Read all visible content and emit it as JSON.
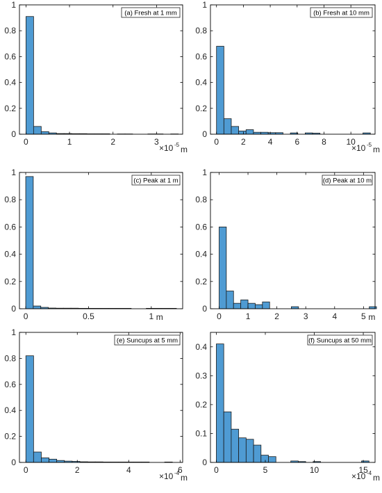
{
  "chart_data": [
    {
      "id": "a",
      "type": "bar",
      "legend": "(a) Fresh at 1 mm",
      "legend_position": "top-right",
      "xlim": [
        -0.15,
        3.6
      ],
      "ylim": [
        0,
        1
      ],
      "xticks": [
        0,
        1,
        2,
        3
      ],
      "xtick_labels": [
        "0",
        "1",
        "2",
        "3"
      ],
      "yticks": [
        0,
        0.2,
        0.4,
        0.6,
        0.8,
        1
      ],
      "ytick_labels": [
        "0",
        "0.2",
        "0.4",
        "0.6",
        "0.8",
        "1"
      ],
      "unit": {
        "prefix": "×10",
        "exponent": "-5",
        "suffix": "m"
      },
      "bin_width": 0.175,
      "bins_start": [
        0,
        0.175,
        0.35,
        0.525,
        0.7,
        0.875,
        1.05,
        1.225,
        1.4,
        1.575,
        1.75,
        2.1,
        2.275,
        2.8,
        2.975,
        3.325
      ],
      "values": [
        0.91,
        0.06,
        0.02,
        0.01,
        0.005,
        0.005,
        0.004,
        0.004,
        0.003,
        0.003,
        0.003,
        0.002,
        0.002,
        0.002,
        0.002,
        0.002
      ]
    },
    {
      "id": "b",
      "type": "bar",
      "legend": "(b) Fresh at 10 mm",
      "legend_position": "top-right",
      "xlim": [
        -0.45,
        11.8
      ],
      "ylim": [
        0,
        1
      ],
      "xticks": [
        0,
        2,
        4,
        6,
        8,
        10
      ],
      "xtick_labels": [
        "0",
        "2",
        "4",
        "6",
        "8",
        "10"
      ],
      "yticks": [
        0,
        0.2,
        0.4,
        0.6,
        0.8,
        1
      ],
      "ytick_labels": [
        "0",
        "0.2",
        "0.4",
        "0.6",
        "0.8",
        "1"
      ],
      "unit": {
        "prefix": "×10",
        "exponent": "-5",
        "suffix": "m"
      },
      "bin_width": 0.55,
      "bins_start": [
        0,
        0.55,
        1.1,
        1.65,
        2.2,
        2.75,
        3.3,
        3.85,
        4.4,
        5.5,
        6.6,
        7.15,
        10.9
      ],
      "values": [
        0.68,
        0.12,
        0.06,
        0.025,
        0.035,
        0.015,
        0.015,
        0.012,
        0.012,
        0.01,
        0.01,
        0.008,
        0.01
      ]
    },
    {
      "id": "c",
      "type": "bar",
      "legend": "(c) Peak at 1 m",
      "legend_position": "top-right",
      "xlim": [
        -0.05,
        1.25
      ],
      "ylim": [
        0,
        1
      ],
      "xticks": [
        0,
        0.5,
        1
      ],
      "xtick_labels": [
        "0",
        "0.5",
        "1"
      ],
      "yticks": [
        0,
        0.2,
        0.4,
        0.6,
        0.8,
        1
      ],
      "ytick_labels": [
        "0",
        "0.2",
        "0.4",
        "0.6",
        "0.8",
        "1"
      ],
      "unit": {
        "prefix": "",
        "exponent": "",
        "suffix": "m"
      },
      "bin_width": 0.06,
      "bins_start": [
        0,
        0.06,
        0.12,
        0.18,
        0.24,
        0.3,
        0.36,
        0.42,
        0.48,
        0.54,
        0.6,
        0.66,
        0.72,
        0.78,
        0.96,
        1.02,
        1.08,
        1.14
      ],
      "values": [
        0.97,
        0.02,
        0.01,
        0.005,
        0.004,
        0.004,
        0.004,
        0.003,
        0.003,
        0.003,
        0.003,
        0.003,
        0.003,
        0.003,
        0.003,
        0.003,
        0.003,
        0.003
      ]
    },
    {
      "id": "d",
      "type": "bar",
      "legend": "(d) Peak at 10 m",
      "legend_position": "top-right",
      "xlim": [
        -0.3,
        5.4
      ],
      "ylim": [
        0,
        1
      ],
      "xticks": [
        0,
        1,
        2,
        3,
        4,
        5
      ],
      "xtick_labels": [
        "0",
        "1",
        "2",
        "3",
        "4",
        "5"
      ],
      "yticks": [
        0,
        0.2,
        0.4,
        0.6,
        0.8,
        1
      ],
      "ytick_labels": [
        "0",
        "0.2",
        "0.4",
        "0.6",
        "0.8",
        "1"
      ],
      "unit": {
        "prefix": "",
        "exponent": "",
        "suffix": "m"
      },
      "bin_width": 0.25,
      "bins_start": [
        0,
        0.25,
        0.5,
        0.75,
        1.0,
        1.25,
        1.5,
        2.5,
        5.2
      ],
      "values": [
        0.6,
        0.13,
        0.04,
        0.065,
        0.04,
        0.03,
        0.05,
        0.015,
        0.015
      ]
    },
    {
      "id": "e",
      "type": "bar",
      "legend": "(e) Suncups at 5 mm",
      "legend_position": "top-right",
      "xlim": [
        -0.25,
        6.1
      ],
      "ylim": [
        0,
        1
      ],
      "xticks": [
        0,
        2,
        4,
        6
      ],
      "xtick_labels": [
        "0",
        "2",
        "4",
        "6"
      ],
      "yticks": [
        0,
        0.2,
        0.4,
        0.6,
        0.8,
        1
      ],
      "ytick_labels": [
        "0",
        "0.2",
        "0.4",
        "0.6",
        "0.8",
        "1"
      ],
      "unit": {
        "prefix": "×10",
        "exponent": "-4",
        "suffix": "m"
      },
      "bin_width": 0.3,
      "bins_start": [
        0,
        0.3,
        0.6,
        0.9,
        1.2,
        1.5,
        1.8,
        2.1,
        2.4,
        2.7,
        3.0,
        3.3,
        3.6,
        3.9,
        4.2,
        4.5,
        5.4
      ],
      "values": [
        0.82,
        0.08,
        0.035,
        0.025,
        0.015,
        0.01,
        0.008,
        0.005,
        0.004,
        0.004,
        0.003,
        0.003,
        0.003,
        0.003,
        0.003,
        0.003,
        0.003
      ]
    },
    {
      "id": "f",
      "type": "bar",
      "legend": "(f) Suncups at 50 mm",
      "legend_position": "top-right",
      "xlim": [
        -0.6,
        16.2
      ],
      "ylim": [
        0,
        0.45
      ],
      "xticks": [
        0,
        5,
        10,
        15
      ],
      "xtick_labels": [
        "0",
        "5",
        "10",
        "15"
      ],
      "yticks": [
        0,
        0.1,
        0.2,
        0.3,
        0.4
      ],
      "ytick_labels": [
        "0",
        "0.1",
        "0.2",
        "0.3",
        "0.4"
      ],
      "unit": {
        "prefix": "×10",
        "exponent": "-4",
        "suffix": "m"
      },
      "bin_width": 0.76,
      "bins_start": [
        0,
        0.76,
        1.52,
        2.28,
        3.04,
        3.8,
        4.56,
        5.32,
        7.6,
        8.36,
        9.88,
        14.82
      ],
      "values": [
        0.41,
        0.175,
        0.115,
        0.085,
        0.08,
        0.06,
        0.025,
        0.02,
        0.005,
        0.003,
        0.003,
        0.005
      ]
    }
  ],
  "colors": {
    "bar_fill": "#4f9bd3",
    "bar_stroke": "#1a1a1a",
    "axis": "#000000"
  }
}
